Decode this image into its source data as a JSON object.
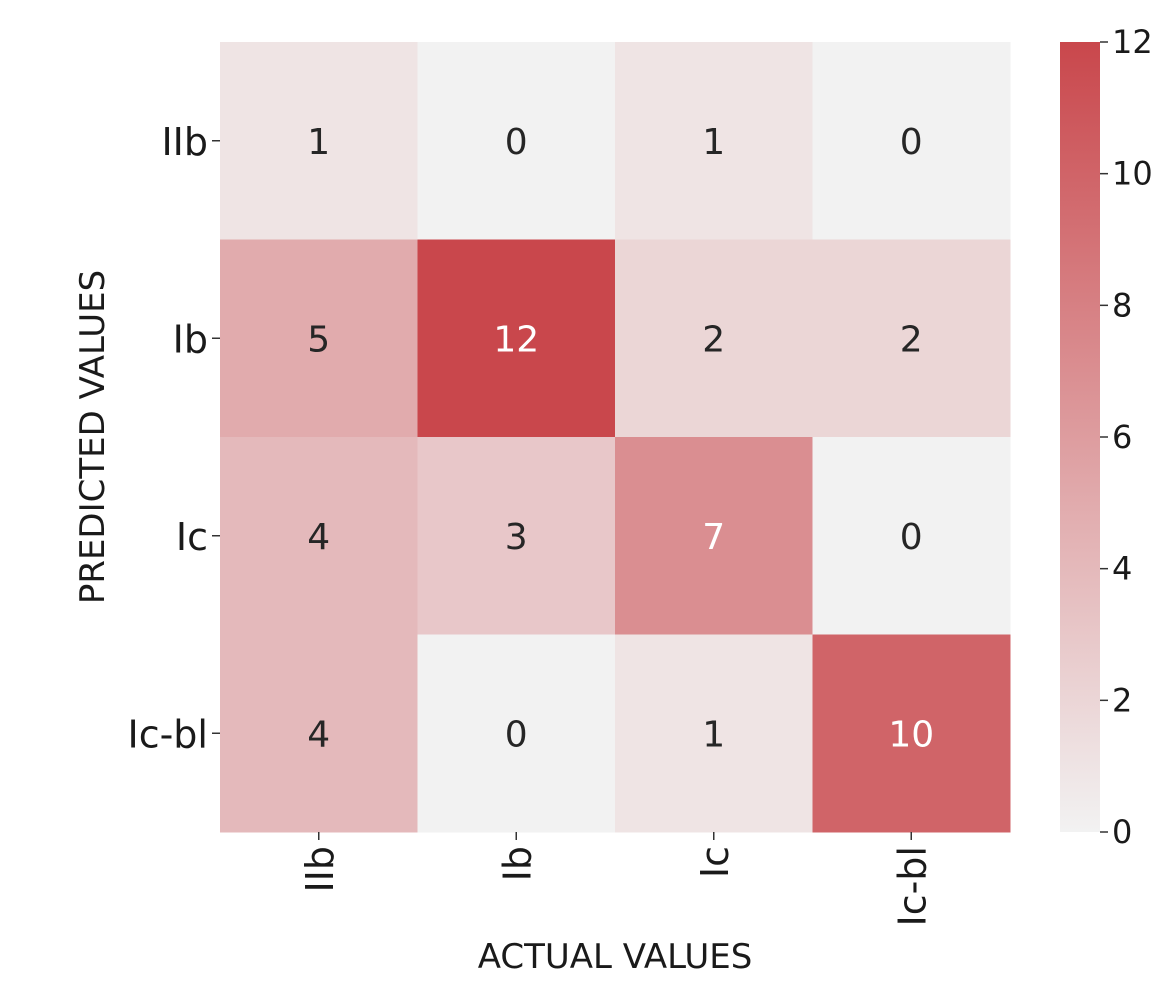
{
  "chart_data": {
    "type": "heatmap",
    "title": "",
    "x_categories": [
      "IIb",
      "Ib",
      "Ic",
      "Ic-bl"
    ],
    "y_categories": [
      "IIb",
      "Ib",
      "Ic",
      "Ic-bl"
    ],
    "values": [
      [
        1,
        0,
        1,
        0
      ],
      [
        5,
        12,
        2,
        2
      ],
      [
        4,
        3,
        7,
        0
      ],
      [
        4,
        0,
        1,
        10
      ]
    ],
    "xlabel": "ACTUAL VALUES",
    "ylabel": "PREDICTED VALUES",
    "colorbar": {
      "range": [
        0,
        12
      ],
      "ticks": [
        0,
        2,
        4,
        6,
        8,
        10,
        12
      ],
      "tick_labels": [
        "0",
        "2",
        "4",
        "6",
        "8",
        "10",
        "12"
      ],
      "low_color": "#f2f2f2",
      "high_color": "#c9474c"
    },
    "text_color_dark": "#262626",
    "text_color_light": "#ffffff"
  }
}
